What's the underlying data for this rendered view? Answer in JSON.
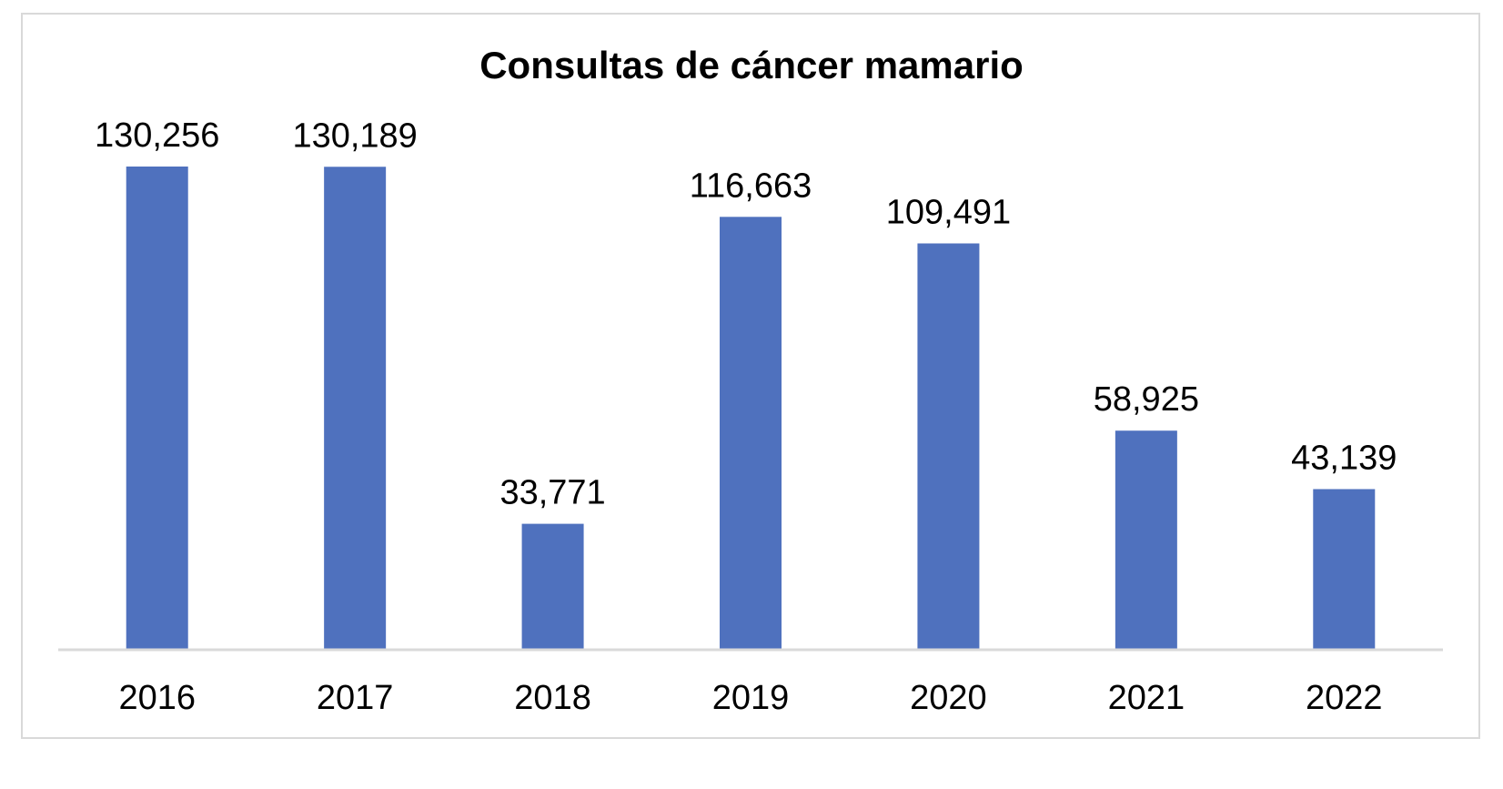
{
  "chart_data": {
    "type": "bar",
    "title": "Consultas de cáncer mamario",
    "categories": [
      "2016",
      "2017",
      "2018",
      "2019",
      "2020",
      "2021",
      "2022"
    ],
    "values": [
      130256,
      130189,
      33771,
      116663,
      109491,
      58925,
      43139
    ],
    "data_labels": [
      "130,256",
      "130,189",
      "33,771",
      "116,663",
      "109,491",
      "58,925",
      "43,139"
    ],
    "xlabel": "",
    "ylabel": "",
    "ylim": [
      0,
      130256
    ],
    "grid": false,
    "legend": "none",
    "bar_color": "#4f71be",
    "axis_color": "#d9d9d9"
  }
}
